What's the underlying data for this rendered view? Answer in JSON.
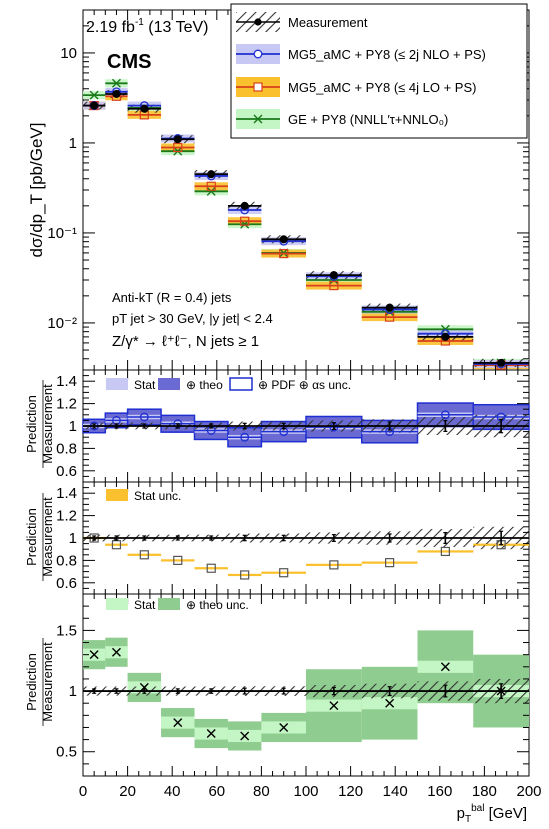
{
  "header": {
    "lumi": "2.19 fb",
    "lumi_sup": "-1",
    "energy": " (13 TeV)",
    "experiment": "CMS"
  },
  "legend": {
    "measurement": "Measurement",
    "mg5_nlo": "MG5_aMC + PY8 (≤ 2j NLO + PS)",
    "mg5_lo": "MG5_aMC + PY8 (≤ 4j LO + PS)",
    "ge": "GE + PY8 (NNLL′τ+NNLO₀)"
  },
  "selection": {
    "line1": "Anti-kT (R = 0.4) jets",
    "line2": "pT jet > 30 GeV, |y jet| < 2.4",
    "line3": "Z/γ* → ℓ⁺ℓ⁻, N jets ≥ 1"
  },
  "ratio_legends": {
    "panel1": {
      "stat": "Stat",
      "theo": "⊕ theo",
      "pdf": "⊕ PDF ⊕ αs unc."
    },
    "panel2": {
      "stat": "Stat unc."
    },
    "panel3": {
      "stat": "Stat",
      "theo": "⊕ theo unc."
    }
  },
  "colors": {
    "mg5_nlo": "#1f2fd1",
    "mg5_nlo_stat": "#c8c8f5",
    "mg5_nlo_theo": "#6a6ad2",
    "mg5_lo": "#d7401a",
    "mg5_lo_band": "#fbc02d",
    "ge": "#1a7a1a",
    "ge_stat": "#c4f5c4",
    "ge_theo": "#8fcc8f",
    "measurement": "#000000"
  },
  "chart_data": [
    {
      "type": "line",
      "ylabel": "dσ/dp_T [pb/GeV]",
      "yscale": "log",
      "ylim": [
        0.003,
        30
      ],
      "xlim": [
        0,
        200
      ],
      "bins": [
        [
          0,
          10
        ],
        [
          10,
          20
        ],
        [
          20,
          35
        ],
        [
          35,
          50
        ],
        [
          50,
          65
        ],
        [
          65,
          80
        ],
        [
          80,
          100
        ],
        [
          100,
          125
        ],
        [
          125,
          150
        ],
        [
          150,
          175
        ],
        [
          175,
          200
        ]
      ],
      "series": [
        {
          "name": "Measurement",
          "values": [
            2.6,
            3.5,
            2.4,
            1.1,
            0.45,
            0.2,
            0.085,
            0.034,
            0.0148,
            0.007,
            0.0036
          ]
        },
        {
          "name": "MG5_aMC + PY8 (≤ 2j NLO + PS)",
          "values": [
            2.6,
            3.7,
            2.6,
            1.12,
            0.43,
            0.18,
            0.081,
            0.033,
            0.0141,
            0.0076,
            0.0035
          ]
        },
        {
          "name": "MG5_aMC + PY8 (≤ 4j LO + PS)",
          "values": [
            2.6,
            3.3,
            2.05,
            0.89,
            0.33,
            0.135,
            0.059,
            0.026,
            0.0116,
            0.0063,
            0.0034
          ]
        },
        {
          "name": "GE + PY8 (NNLL′τ+NNLO₀)",
          "values": [
            3.4,
            4.6,
            2.45,
            0.81,
            0.29,
            0.125,
            0.06,
            0.03,
            0.0133,
            0.0085,
            0.0036
          ]
        }
      ],
      "ytick_labels": [
        "10⁻²",
        "10⁻¹",
        "1",
        "10"
      ]
    },
    {
      "type": "line",
      "ylabel": "Prediction / Measurement",
      "ylim": [
        0.5,
        1.5
      ],
      "yticks": [
        "0.6",
        "0.8",
        "1",
        "1.2",
        "1.4"
      ],
      "series": [
        {
          "name": "MG5_aMC + PY8 (≤ 2j NLO + PS)",
          "values": [
            1.0,
            1.05,
            1.08,
            1.02,
            0.96,
            0.9,
            0.95,
            0.99,
            0.95,
            1.1,
            1.08
          ]
        },
        {
          "name": "Measurement unc.",
          "values": [
            0.03,
            0.03,
            0.03,
            0.03,
            0.03,
            0.04,
            0.04,
            0.05,
            0.06,
            0.08,
            0.1
          ]
        }
      ]
    },
    {
      "type": "line",
      "ylabel": "Prediction / Measurement",
      "ylim": [
        0.5,
        1.5
      ],
      "yticks": [
        "0.6",
        "0.8",
        "1",
        "1.2",
        "1.4"
      ],
      "series": [
        {
          "name": "MG5_aMC + PY8 (≤ 4j LO + PS)",
          "values": [
            1.0,
            0.94,
            0.85,
            0.8,
            0.73,
            0.67,
            0.69,
            0.76,
            0.78,
            0.88,
            0.94
          ]
        }
      ]
    },
    {
      "type": "line",
      "ylabel": "Prediction / Measurement",
      "ylim": [
        0.3,
        1.8
      ],
      "yticks": [
        "0.5",
        "1",
        "1.5"
      ],
      "xlabel": "p_T^bal [GeV]",
      "xticks": [
        "0",
        "20",
        "40",
        "60",
        "80",
        "100",
        "120",
        "140",
        "160",
        "180",
        "200"
      ],
      "series": [
        {
          "name": "GE + PY8 (NNLL′τ+NNLO₀)",
          "values": [
            1.3,
            1.32,
            1.03,
            0.74,
            0.65,
            0.63,
            0.7,
            0.88,
            0.9,
            1.2,
            1.0
          ]
        }
      ]
    }
  ]
}
